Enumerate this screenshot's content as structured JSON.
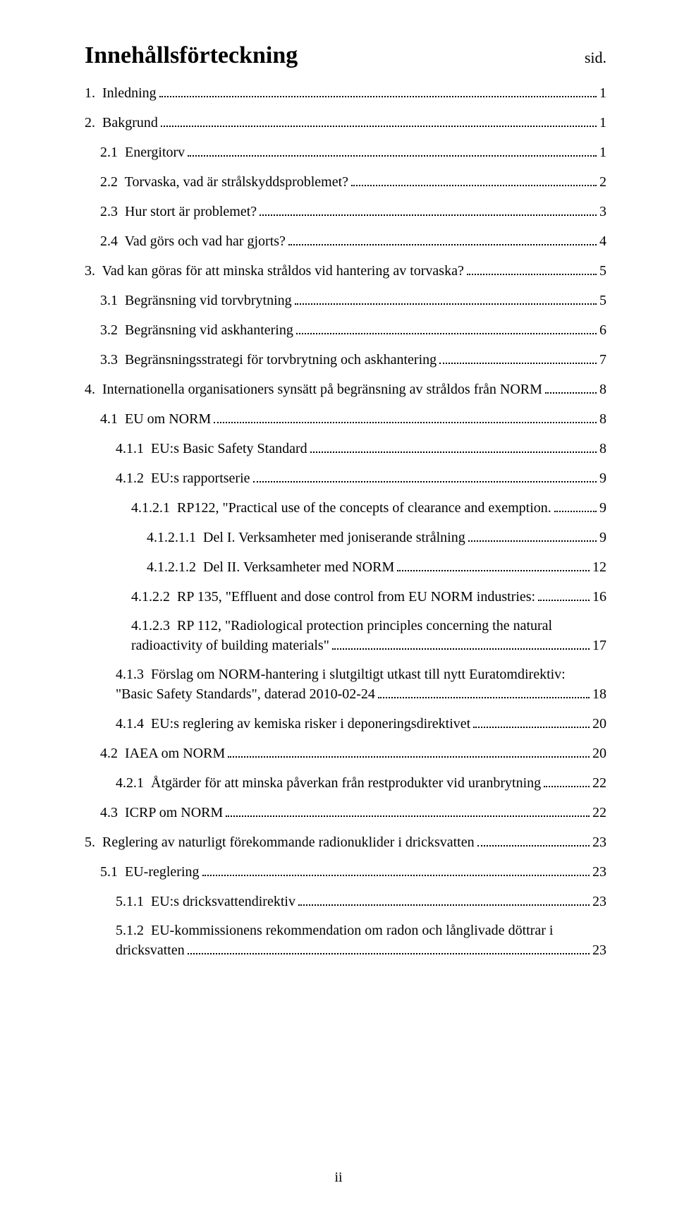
{
  "title": "Innehållsförteckning",
  "sid_label": "sid.",
  "page_number": "ii",
  "toc": [
    {
      "indent": 0,
      "label": "1.  Inledning",
      "page": "1"
    },
    {
      "indent": 0,
      "label": "2.  Bakgrund",
      "page": "1"
    },
    {
      "indent": 1,
      "label": "2.1  Energitorv",
      "page": "1"
    },
    {
      "indent": 1,
      "label": "2.2  Torvaska, vad är strålskyddsproblemet?",
      "page": "2"
    },
    {
      "indent": 1,
      "label": "2.3  Hur stort är problemet?",
      "page": "3"
    },
    {
      "indent": 1,
      "label": "2.4  Vad görs och vad har gjorts?",
      "page": "4"
    },
    {
      "indent": 0,
      "label": "3.  Vad kan göras för att minska stråldos vid hantering av torvaska?",
      "page": "5"
    },
    {
      "indent": 1,
      "label": "3.1  Begränsning vid torvbrytning",
      "page": "5"
    },
    {
      "indent": 1,
      "label": "3.2  Begränsning vid askhantering",
      "page": "6"
    },
    {
      "indent": 1,
      "label": "3.3  Begränsningsstrategi för torvbrytning och askhantering",
      "page": "7"
    },
    {
      "indent": 0,
      "label": "4.  Internationella organisationers synsätt på begränsning av stråldos från NORM",
      "page": "8"
    },
    {
      "indent": 1,
      "label": "4.1  EU om NORM",
      "page": "8"
    },
    {
      "indent": 2,
      "label": "4.1.1  EU:s Basic Safety Standard",
      "page": "8"
    },
    {
      "indent": 2,
      "label": "4.1.2  EU:s rapportserie",
      "page": "9"
    },
    {
      "indent": 3,
      "label": "4.1.2.1  RP122, \"Practical use of the concepts of clearance and exemption.",
      "page": "9"
    },
    {
      "indent": 4,
      "label": "4.1.2.1.1  Del I. Verksamheter med joniserande strålning",
      "page": "9"
    },
    {
      "indent": 4,
      "label": "4.1.2.1.2  Del II. Verksamheter med NORM",
      "page": "12"
    },
    {
      "indent": 3,
      "label": "4.1.2.2  RP 135, \"Effluent and dose control from EU NORM industries:",
      "page": "16"
    },
    {
      "indent": 3,
      "multiline": true,
      "line1": "4.1.2.3  RP 112, \"Radiological protection principles concerning the natural",
      "line2": "radioactivity of building materials\"",
      "page": "17"
    },
    {
      "indent": 2,
      "multiline": true,
      "line1": "4.1.3  Förslag om NORM-hantering i slutgiltigt utkast till nytt Euratomdirektiv:",
      "line2": "\"Basic Safety Standards\", daterad 2010-02-24",
      "page": "18"
    },
    {
      "indent": 2,
      "label": "4.1.4  EU:s reglering av kemiska risker i deponeringsdirektivet",
      "page": "20"
    },
    {
      "indent": 1,
      "label": "4.2  IAEA om NORM",
      "page": "20"
    },
    {
      "indent": 2,
      "label": "4.2.1  Åtgärder för att minska påverkan från restprodukter vid uranbrytning",
      "page": "22"
    },
    {
      "indent": 1,
      "label": "4.3  ICRP om NORM",
      "page": "22"
    },
    {
      "indent": 0,
      "label": "5.  Reglering av naturligt förekommande radionuklider i dricksvatten",
      "page": "23"
    },
    {
      "indent": 1,
      "label": "5.1  EU-reglering",
      "page": "23"
    },
    {
      "indent": 2,
      "label": "5.1.1  EU:s dricksvattendirektiv",
      "page": "23"
    },
    {
      "indent": 2,
      "multiline": true,
      "line1": "5.1.2  EU-kommissionens rekommendation om radon och långlivade döttrar i",
      "line2": "dricksvatten",
      "page": "23"
    }
  ]
}
